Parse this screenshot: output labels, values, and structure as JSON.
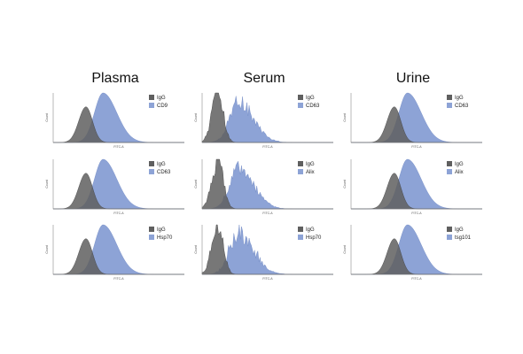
{
  "colors": {
    "igg": "#5f5f5f",
    "marker": "#8da3d6",
    "axis": "#8a8a8a"
  },
  "chart_data": {
    "type": "area",
    "columns": [
      "Plasma",
      "Serum",
      "Urine"
    ],
    "x_axis_label": "FITC-A",
    "y_axis_label": "Count",
    "panels": [
      {
        "column": "Plasma",
        "legend": [
          "IgG",
          "CD9"
        ],
        "igg_peak_frac": 0.25,
        "marker_peak_frac": 0.38,
        "noisy": false
      },
      {
        "column": "Plasma",
        "legend": [
          "IgG",
          "CD63"
        ],
        "igg_peak_frac": 0.25,
        "marker_peak_frac": 0.38,
        "noisy": false
      },
      {
        "column": "Plasma",
        "legend": [
          "IgG",
          "Hsp70"
        ],
        "igg_peak_frac": 0.25,
        "marker_peak_frac": 0.38,
        "noisy": false
      },
      {
        "column": "Serum",
        "legend": [
          "IgG",
          "CD63"
        ],
        "igg_peak_frac": 0.12,
        "marker_peak_frac": 0.28,
        "noisy": true
      },
      {
        "column": "Serum",
        "legend": [
          "IgG",
          "Alix"
        ],
        "igg_peak_frac": 0.12,
        "marker_peak_frac": 0.28,
        "noisy": true
      },
      {
        "column": "Serum",
        "legend": [
          "IgG",
          "Hsp70"
        ],
        "igg_peak_frac": 0.12,
        "marker_peak_frac": 0.28,
        "noisy": true
      },
      {
        "column": "Urine",
        "legend": [
          "IgG",
          "CD63"
        ],
        "igg_peak_frac": 0.33,
        "marker_peak_frac": 0.43,
        "noisy": false
      },
      {
        "column": "Urine",
        "legend": [
          "IgG",
          "Alix"
        ],
        "igg_peak_frac": 0.33,
        "marker_peak_frac": 0.43,
        "noisy": false
      },
      {
        "column": "Urine",
        "legend": [
          "IgG",
          "tsg101"
        ],
        "igg_peak_frac": 0.33,
        "marker_peak_frac": 0.43,
        "noisy": false
      }
    ]
  }
}
